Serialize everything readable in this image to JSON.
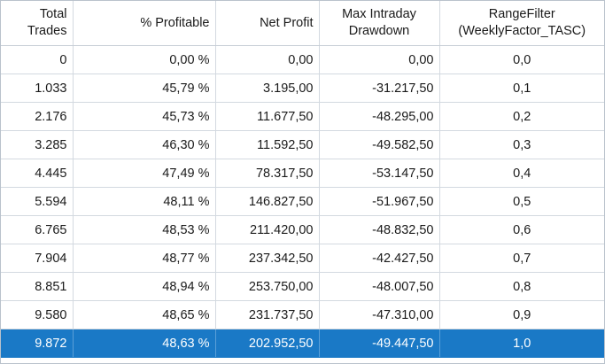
{
  "columns": {
    "total_trades": "Total Trades",
    "pct_profitable": "% Profitable",
    "net_profit": "Net Profit",
    "max_dd_line1": "Max Intraday",
    "max_dd_line2": "Drawdown",
    "range_line1": "RangeFilter",
    "range_line2": "(WeeklyFactor_TASC)"
  },
  "rows": [
    {
      "trades": "0",
      "pct": "0,00 %",
      "profit": "0,00",
      "drawdown": "0,00",
      "range": "0,0"
    },
    {
      "trades": "1.033",
      "pct": "45,79 %",
      "profit": "3.195,00",
      "drawdown": "-31.217,50",
      "range": "0,1"
    },
    {
      "trades": "2.176",
      "pct": "45,73 %",
      "profit": "11.677,50",
      "drawdown": "-48.295,00",
      "range": "0,2"
    },
    {
      "trades": "3.285",
      "pct": "46,30 %",
      "profit": "11.592,50",
      "drawdown": "-49.582,50",
      "range": "0,3"
    },
    {
      "trades": "4.445",
      "pct": "47,49 %",
      "profit": "78.317,50",
      "drawdown": "-53.147,50",
      "range": "0,4"
    },
    {
      "trades": "5.594",
      "pct": "48,11 %",
      "profit": "146.827,50",
      "drawdown": "-51.967,50",
      "range": "0,5"
    },
    {
      "trades": "6.765",
      "pct": "48,53 %",
      "profit": "211.420,00",
      "drawdown": "-48.832,50",
      "range": "0,6"
    },
    {
      "trades": "7.904",
      "pct": "48,77 %",
      "profit": "237.342,50",
      "drawdown": "-42.427,50",
      "range": "0,7"
    },
    {
      "trades": "8.851",
      "pct": "48,94 %",
      "profit": "253.750,00",
      "drawdown": "-48.007,50",
      "range": "0,8"
    },
    {
      "trades": "9.580",
      "pct": "48,65 %",
      "profit": "231.737,50",
      "drawdown": "-47.310,00",
      "range": "0,9"
    },
    {
      "trades": "9.872",
      "pct": "48,63 %",
      "profit": "202.952,50",
      "drawdown": "-49.447,50",
      "range": "1,0"
    }
  ],
  "selected_row_index": 10,
  "colors": {
    "selection": "#1a79c6",
    "grid": "#d3d9e0"
  }
}
